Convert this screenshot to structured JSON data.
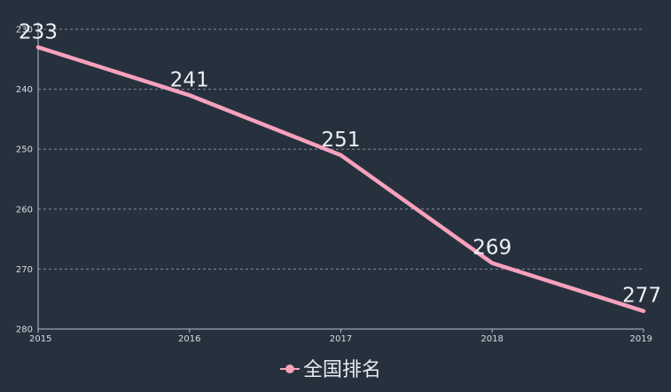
{
  "chart_data": {
    "type": "line",
    "x": [
      "2015",
      "2016",
      "2017",
      "2018",
      "2019"
    ],
    "series": [
      {
        "name": "全国排名",
        "values": [
          233,
          241,
          251,
          269,
          277
        ],
        "color": "#f7a1bd"
      }
    ],
    "ylim": [
      230,
      280
    ],
    "y_inverted": true,
    "yticks": [
      "230",
      "240",
      "250",
      "260",
      "270",
      "280"
    ],
    "grid": true,
    "legend_position": "bottom-center",
    "title": "",
    "xlabel": "",
    "ylabel": ""
  },
  "colors": {
    "background": "#27313e",
    "series": "#f7a1bd",
    "text": "#eef1f4",
    "grid": "#9aa3ae"
  },
  "legend": {
    "label": "全国排名",
    "icon": "circle-line-icon"
  }
}
